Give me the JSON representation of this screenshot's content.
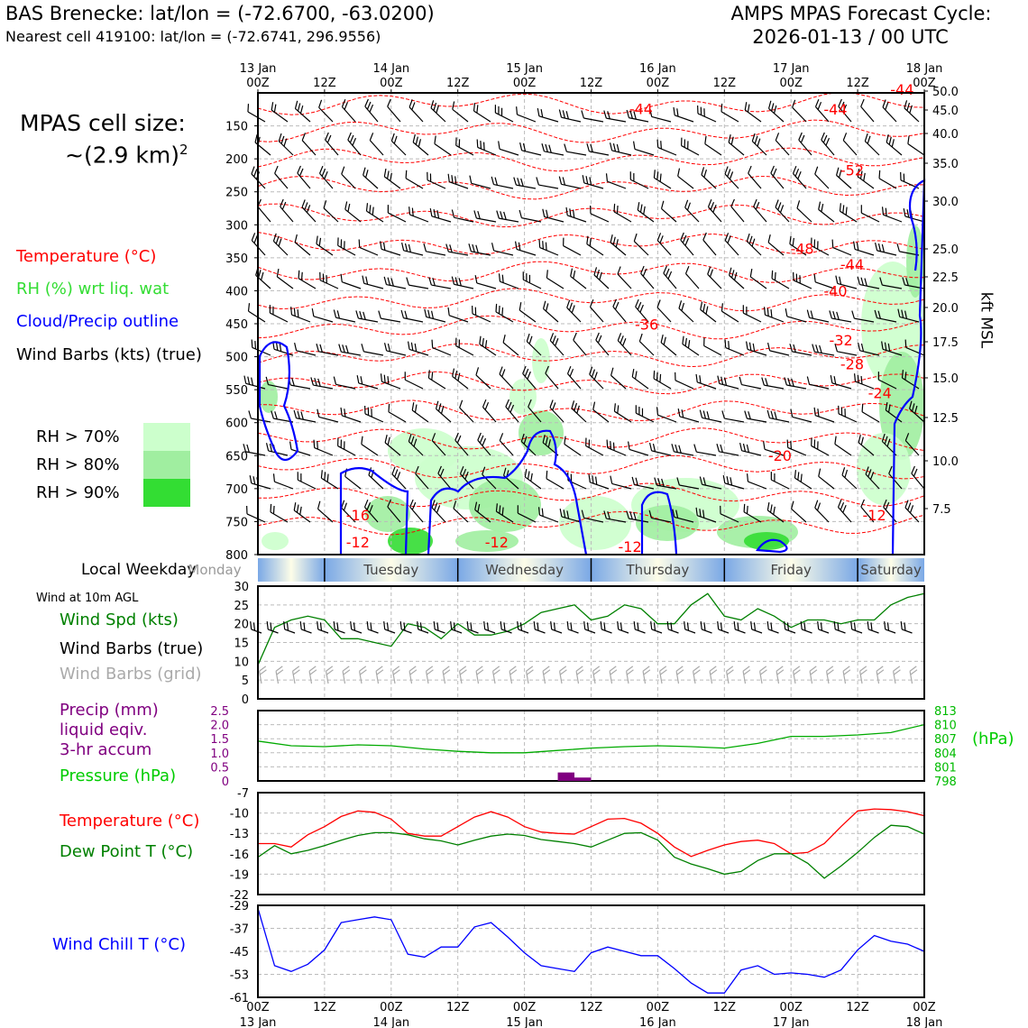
{
  "header": {
    "station": "BAS Brenecke: lat/lon = (-72.6700, -63.0200)",
    "nearest": "Nearest cell 419100: lat/lon = (-72.6741, 296.9556)",
    "cycle_line1": "AMPS MPAS Forecast Cycle:",
    "cycle_line2": "2026-01-13 / 00 UTC"
  },
  "legend": {
    "cell_line1": "MPAS cell size:",
    "cell_line2": "~(2.9 km)",
    "cell_exp": "2",
    "temperature": "Temperature (°C)",
    "rh": "RH (%) wrt liq. wat",
    "cloud": "Cloud/Precip outline",
    "barbs": "Wind Barbs (kts) (true)",
    "rh70": "RH > 70%",
    "rh80": "RH > 80%",
    "rh90": "RH > 90%",
    "local_weekday": "Local Weekday",
    "wind_10m": "Wind at 10m AGL",
    "wind_spd": "Wind Spd (kts)",
    "wind_barbs_true": "Wind Barbs (true)",
    "wind_barbs_grid": "Wind Barbs (grid)",
    "precip1": "Precip (mm)",
    "precip2": "liquid eqiv.",
    "precip3": "3-hr accum",
    "pressure": "Pressure (hPa)",
    "pressure_unit": "(hPa)",
    "temp2": "Temperature (°C)",
    "dewpoint": "Dew Point T (°C)",
    "windchill": "Wind Chill T (°C)",
    "kft": "kft MSL"
  },
  "colors": {
    "temp": "#ff0000",
    "rh": "#22cc22",
    "cloud": "#0000ff",
    "windspd": "#008000",
    "precip": "#800080",
    "pressure": "#00aa00",
    "dew": "#008000",
    "chill": "#0000ff",
    "grid_barb": "#aaaaaa",
    "rh70": "#ccffcc",
    "rh80": "#a0eea0",
    "rh90": "#33dd33"
  },
  "time_axis": {
    "top_day_labels": [
      "13 Jan",
      "14 Jan",
      "15 Jan",
      "16 Jan",
      "17 Jan",
      "18 Jan"
    ],
    "hour_labels": [
      "00Z",
      "12Z",
      "00Z",
      "12Z",
      "00Z",
      "12Z",
      "00Z",
      "12Z",
      "00Z",
      "12Z",
      "00Z"
    ],
    "hours": [
      0,
      12,
      24,
      36,
      48,
      60,
      72,
      84,
      96,
      108,
      120
    ]
  },
  "weekdays": [
    "Monday",
    "Tuesday",
    "Wednesday",
    "Thursday",
    "Friday",
    "Saturday"
  ],
  "chart_data": [
    {
      "type": "heatmap",
      "name_hint": "time-height cross section",
      "yaxis_pressure_hpa": [
        150,
        200,
        250,
        300,
        350,
        400,
        450,
        500,
        550,
        600,
        650,
        700,
        750,
        800
      ],
      "yaxis_right_kft": [
        "50.0",
        "45.0",
        "40.0",
        "35.0",
        "30.0",
        "25.0",
        "22.5",
        "20.0",
        "17.5",
        "15.0",
        "12.5",
        "10.0",
        "7.5"
      ],
      "temperature_contour_labels": [
        {
          "label": "-44",
          "hour": 116,
          "p": 103
        },
        {
          "label": "-44",
          "hour": 69,
          "p": 132
        },
        {
          "label": "-44",
          "hour": 104,
          "p": 133
        },
        {
          "label": "-52",
          "hour": 107,
          "p": 225
        },
        {
          "label": "-48",
          "hour": 98,
          "p": 344
        },
        {
          "label": "-44",
          "hour": 107,
          "p": 368
        },
        {
          "label": "-40",
          "hour": 104,
          "p": 408
        },
        {
          "label": "-36",
          "hour": 70,
          "p": 459
        },
        {
          "label": "-32",
          "hour": 105,
          "p": 483
        },
        {
          "label": "-28",
          "hour": 107,
          "p": 519
        },
        {
          "label": "-24",
          "hour": 112,
          "p": 563
        },
        {
          "label": "-20",
          "hour": 94,
          "p": 658
        },
        {
          "label": "-16",
          "hour": 18,
          "p": 748
        },
        {
          "label": "-12",
          "hour": 111,
          "p": 748
        },
        {
          "label": "-12",
          "hour": 18,
          "p": 789
        },
        {
          "label": "-12",
          "hour": 43,
          "p": 789
        },
        {
          "label": "-12",
          "hour": 67,
          "p": 796
        }
      ]
    },
    {
      "type": "line",
      "title": "Wind Spd (kts)",
      "ylim": [
        0,
        30
      ],
      "yticks": [
        0,
        5,
        10,
        15,
        20,
        25,
        30
      ],
      "x_hours": [
        0,
        3,
        6,
        9,
        12,
        15,
        18,
        21,
        24,
        27,
        30,
        33,
        36,
        39,
        42,
        45,
        48,
        51,
        54,
        57,
        60,
        63,
        66,
        69,
        72,
        75,
        78,
        81,
        84,
        87,
        90,
        93,
        96,
        99,
        102,
        105,
        108,
        111,
        114,
        117,
        120
      ],
      "series": [
        {
          "name": "Wind Spd (kts)",
          "values": [
            9,
            19,
            21,
            22,
            21,
            16,
            16,
            15,
            14,
            20,
            19,
            16,
            20,
            17,
            17,
            18,
            20,
            23,
            24,
            25,
            21,
            22,
            25,
            24,
            20,
            20,
            25,
            28,
            22,
            21,
            24,
            22,
            19,
            21,
            21,
            20,
            21,
            21,
            25,
            27,
            28
          ]
        }
      ]
    },
    {
      "type": "bar",
      "title": "Precip (mm)",
      "ylim": [
        0,
        2.5
      ],
      "yticks": [
        "0",
        "0.5",
        "1.0",
        "1.5",
        "2.0",
        "2.5"
      ],
      "categories_hours": [
        54,
        57
      ],
      "values": [
        0.3,
        0.12
      ]
    },
    {
      "type": "line",
      "title": "Pressure (hPa)",
      "ylim": [
        798,
        813
      ],
      "yticks": [
        "798",
        "801",
        "804",
        "807",
        "810",
        "813"
      ],
      "x_hours": [
        0,
        6,
        12,
        18,
        24,
        30,
        36,
        42,
        48,
        54,
        60,
        66,
        72,
        78,
        84,
        90,
        96,
        102,
        108,
        114,
        120
      ],
      "series": [
        {
          "name": "Pressure (hPa)",
          "values": [
            806.5,
            805.5,
            805.3,
            805.7,
            805.5,
            804.8,
            804.3,
            804.0,
            804.0,
            804.5,
            805.0,
            805.3,
            805.5,
            805.3,
            805.0,
            806.0,
            807.5,
            807.5,
            807.8,
            808.3,
            810.0
          ]
        }
      ]
    },
    {
      "type": "line",
      "title": "Temperature (°C) / Dew Point T (°C)",
      "ylim": [
        -22,
        -7
      ],
      "yticks": [
        "-7",
        "-10",
        "-13",
        "-16",
        "-19",
        "-22"
      ],
      "x_hours": [
        0,
        3,
        6,
        9,
        12,
        15,
        18,
        21,
        24,
        27,
        30,
        33,
        36,
        39,
        42,
        45,
        48,
        51,
        54,
        57,
        60,
        63,
        66,
        69,
        72,
        75,
        78,
        81,
        84,
        87,
        90,
        93,
        96,
        99,
        102,
        105,
        108,
        111,
        114,
        117,
        120
      ],
      "series": [
        {
          "name": "Temperature (°C)",
          "values": [
            -14.5,
            -14.5,
            -15.0,
            -13.2,
            -12.0,
            -10.5,
            -9.7,
            -9.9,
            -10.9,
            -13.0,
            -13.4,
            -13.4,
            -12.0,
            -10.6,
            -9.8,
            -10.6,
            -12.0,
            -12.8,
            -13.0,
            -13.1,
            -12.0,
            -10.9,
            -10.8,
            -11.5,
            -13.0,
            -15.0,
            -16.4,
            -15.5,
            -14.7,
            -14.2,
            -14.0,
            -14.5,
            -16.0,
            -15.8,
            -14.5,
            -12.0,
            -9.7,
            -9.4,
            -9.5,
            -9.8,
            -10.4
          ]
        },
        {
          "name": "Dew Point T (°C)",
          "values": [
            -16.5,
            -14.8,
            -16.0,
            -15.5,
            -14.8,
            -14.0,
            -13.3,
            -12.9,
            -12.9,
            -13.2,
            -13.8,
            -14.1,
            -14.7,
            -14.0,
            -13.4,
            -13.1,
            -13.3,
            -13.9,
            -14.2,
            -14.5,
            -15.0,
            -14.0,
            -13.0,
            -12.9,
            -14.0,
            -16.5,
            -17.5,
            -18.2,
            -19.0,
            -18.6,
            -17.0,
            -16.0,
            -16.0,
            -17.4,
            -19.6,
            -17.8,
            -15.8,
            -13.6,
            -11.8,
            -12.0,
            -13.1
          ]
        }
      ]
    },
    {
      "type": "line",
      "title": "Wind Chill T (°C)",
      "ylim": [
        -61,
        -29
      ],
      "yticks": [
        "-29",
        "-37",
        "-45",
        "-53",
        "-61"
      ],
      "x_hours": [
        0,
        3,
        6,
        9,
        12,
        15,
        18,
        21,
        24,
        27,
        30,
        33,
        36,
        39,
        42,
        45,
        48,
        51,
        54,
        57,
        60,
        63,
        66,
        69,
        72,
        75,
        78,
        81,
        84,
        87,
        90,
        93,
        96,
        99,
        102,
        105,
        108,
        111,
        114,
        117,
        120
      ],
      "series": [
        {
          "name": "Wind Chill T (°C)",
          "values": [
            -30,
            -50,
            -52,
            -49.5,
            -44.5,
            -35,
            -34,
            -33,
            -34,
            -46,
            -47,
            -43.5,
            -43.5,
            -36.5,
            -35,
            -40,
            -45.5,
            -50,
            -51,
            -52,
            -45.5,
            -43.5,
            -45,
            -46.5,
            -46.5,
            -51,
            -56,
            -59.5,
            -59.5,
            -51.5,
            -50,
            -53,
            -52.5,
            -53,
            -54,
            -51.5,
            -44.5,
            -39.5,
            -41.5,
            -42.5,
            -45
          ]
        }
      ]
    }
  ]
}
